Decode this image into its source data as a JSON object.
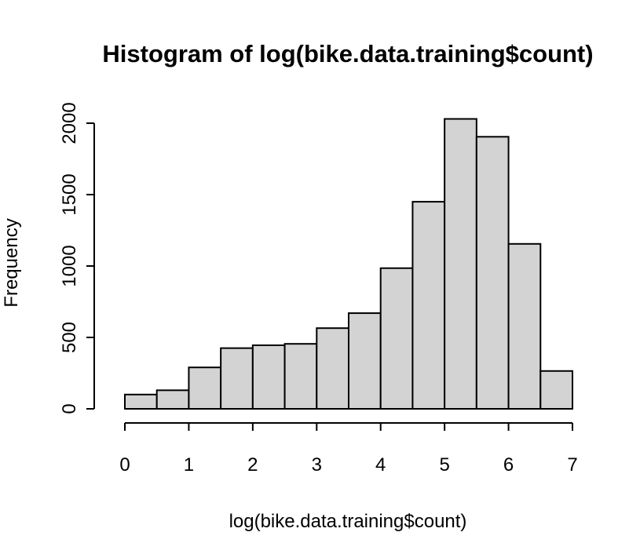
{
  "chart_data": {
    "type": "bar",
    "title": "Histogram of log(bike.data.training$count)",
    "xlabel": "log(bike.data.training$count)",
    "ylabel": "Frequency",
    "bins": [
      {
        "from": 0.0,
        "to": 0.5,
        "count": 100
      },
      {
        "from": 0.5,
        "to": 1.0,
        "count": 130
      },
      {
        "from": 1.0,
        "to": 1.5,
        "count": 290
      },
      {
        "from": 1.5,
        "to": 2.0,
        "count": 425
      },
      {
        "from": 2.0,
        "to": 2.5,
        "count": 445
      },
      {
        "from": 2.5,
        "to": 3.0,
        "count": 455
      },
      {
        "from": 3.0,
        "to": 3.5,
        "count": 565
      },
      {
        "from": 3.5,
        "to": 4.0,
        "count": 670
      },
      {
        "from": 4.0,
        "to": 4.5,
        "count": 985
      },
      {
        "from": 4.5,
        "to": 5.0,
        "count": 1450
      },
      {
        "from": 5.0,
        "to": 5.5,
        "count": 2030
      },
      {
        "from": 5.5,
        "to": 6.0,
        "count": 1905
      },
      {
        "from": 6.0,
        "to": 6.5,
        "count": 1155
      },
      {
        "from": 6.5,
        "to": 7.0,
        "count": 265
      }
    ],
    "xlim": [
      0,
      7
    ],
    "ylim": [
      0,
      2000
    ],
    "x_ticks": [
      "0",
      "1",
      "2",
      "3",
      "4",
      "5",
      "6",
      "7"
    ],
    "y_ticks": [
      "0",
      "500",
      "1000",
      "1500",
      "2000"
    ],
    "colors": {
      "bar_fill": "#d3d3d3",
      "bar_stroke": "#000000",
      "axis": "#000000",
      "background": "#ffffff"
    },
    "grid": false
  }
}
